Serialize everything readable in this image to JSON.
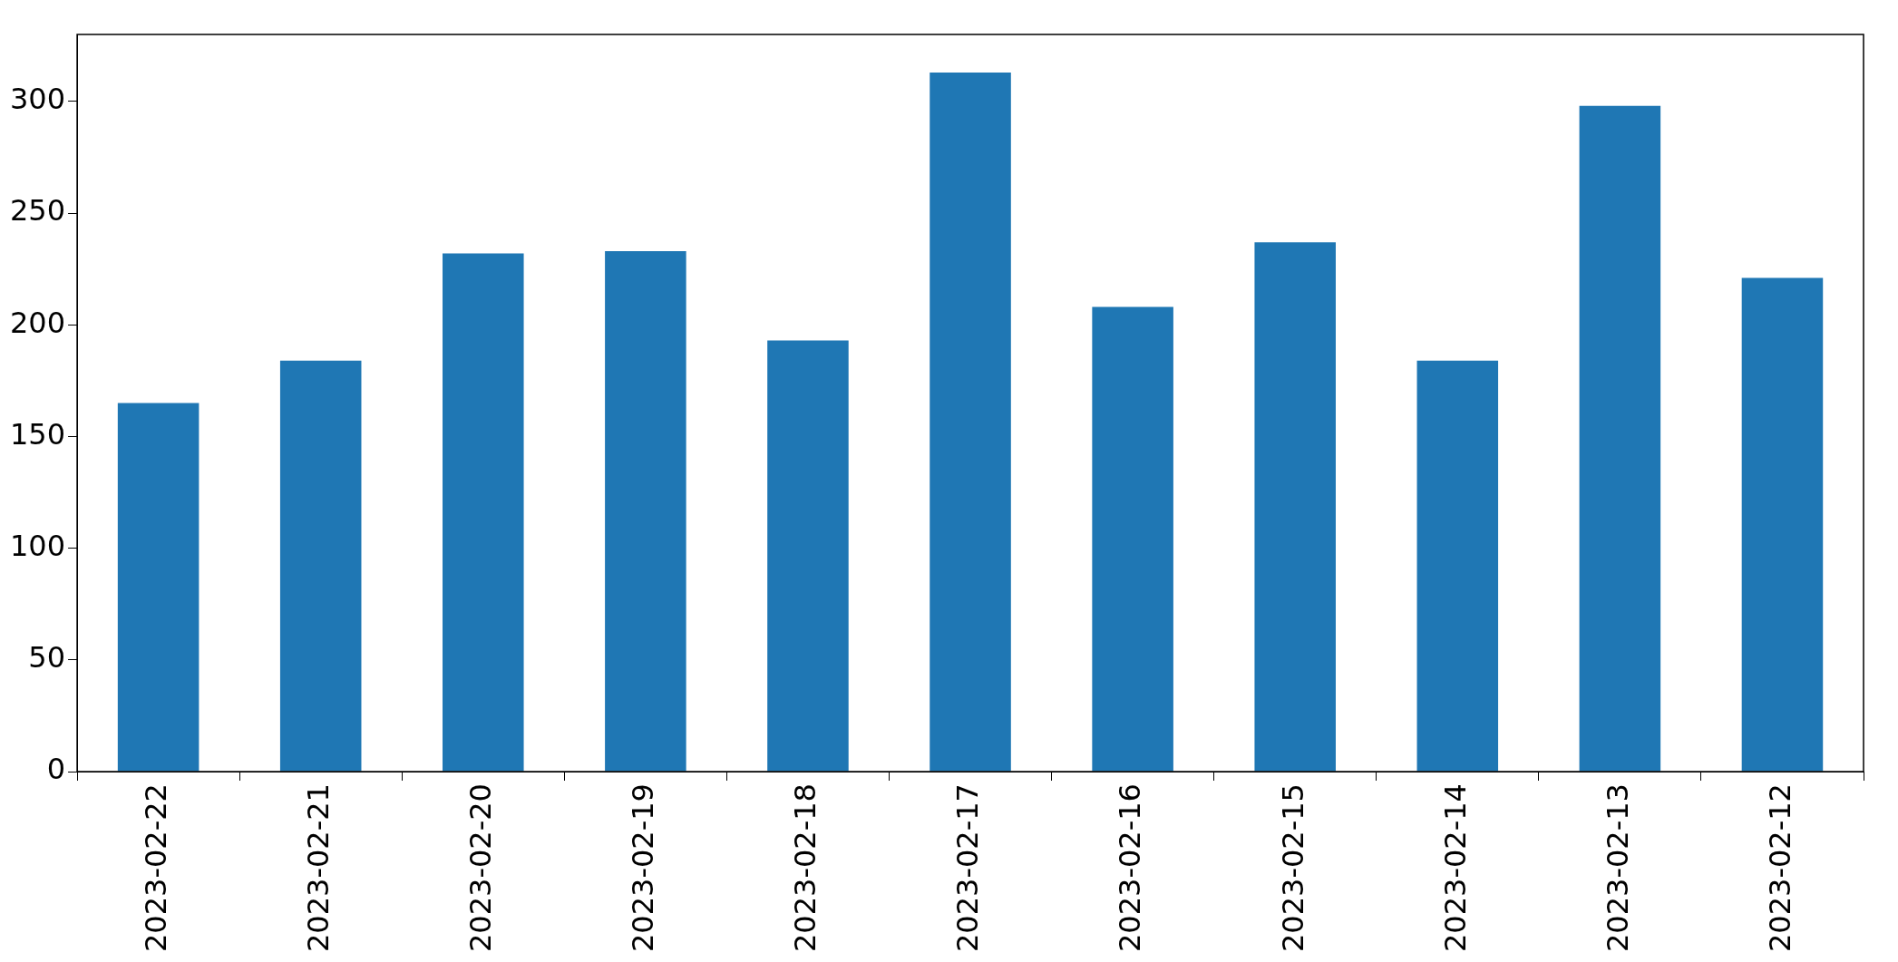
{
  "chart_data": {
    "type": "bar",
    "categories": [
      "2023-02-22",
      "2023-02-21",
      "2023-02-20",
      "2023-02-19",
      "2023-02-18",
      "2023-02-17",
      "2023-02-16",
      "2023-02-15",
      "2023-02-14",
      "2023-02-13",
      "2023-02-12"
    ],
    "values": [
      165,
      184,
      232,
      233,
      193,
      313,
      208,
      237,
      184,
      298,
      221
    ],
    "color": "#1f77b4",
    "ylim": [
      0,
      330
    ],
    "yticks": [
      0,
      50,
      100,
      150,
      200,
      250,
      300
    ],
    "grid": false,
    "legend": false
  }
}
